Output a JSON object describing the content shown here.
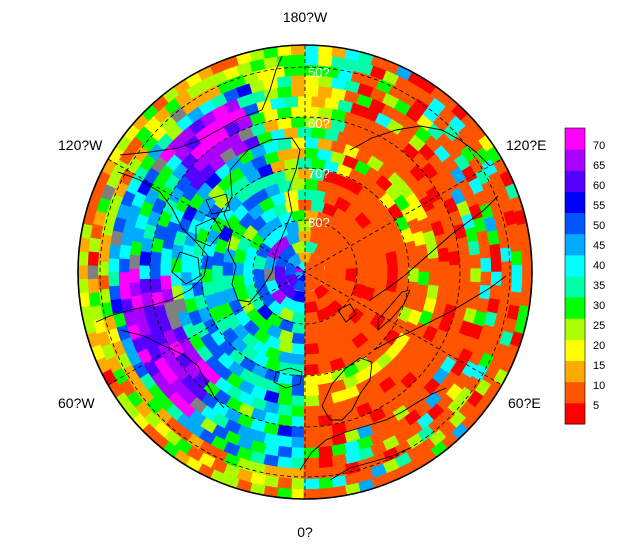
{
  "map": {
    "projection": "north-polar-stereographic",
    "longitude_labels": {
      "top": "180?W",
      "upper_left": "120?W",
      "upper_right": "120?E",
      "lower_left": "60?W",
      "lower_right": "60?E",
      "bottom": "0?"
    },
    "latitude_labels": [
      "50?",
      "60?",
      "70?",
      "80?"
    ],
    "latitude_label_color": "#ffffff"
  },
  "colorbar": {
    "ticks": [
      "70",
      "65",
      "60",
      "55",
      "50",
      "45",
      "40",
      "35",
      "30",
      "25",
      "20",
      "15",
      "10",
      "5"
    ],
    "min": 0,
    "max": 75,
    "missing_color": "#808080",
    "colors": [
      "#ff0000",
      "#ff5500",
      "#ffaa00",
      "#ffff00",
      "#aaff00",
      "#00ff00",
      "#00ffaa",
      "#00ffff",
      "#00aaff",
      "#0055ff",
      "#0000ff",
      "#5500ff",
      "#aa00ff",
      "#ff00ff"
    ]
  }
}
